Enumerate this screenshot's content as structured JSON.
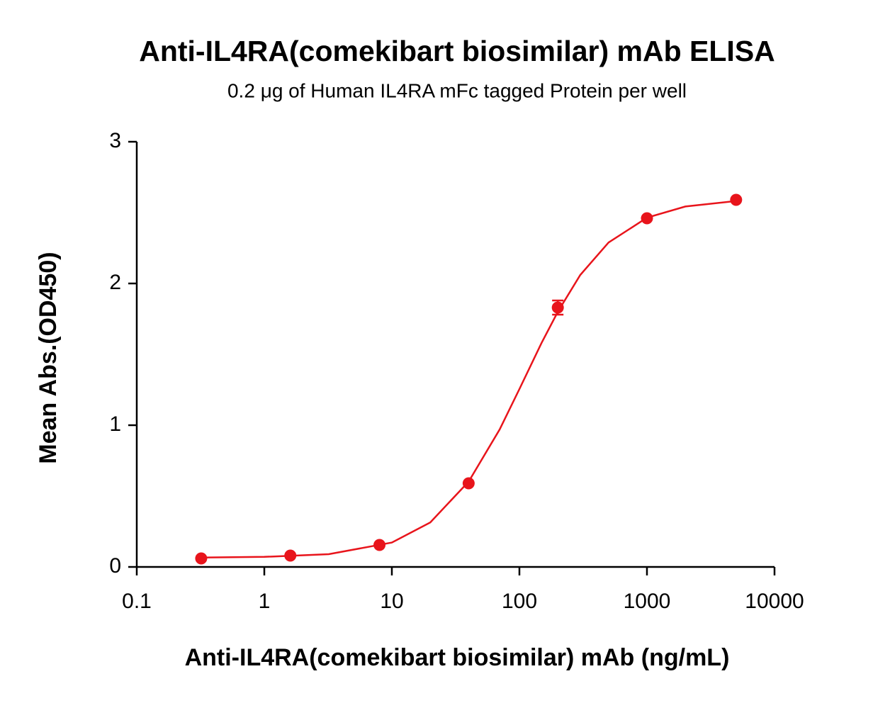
{
  "chart_data": {
    "type": "scatter",
    "title": "Anti-IL4RA(comekibart biosimilar) mAb ELISA",
    "subtitle": "0.2 μg of Human IL4RA mFc tagged Protein per well",
    "x_label": "Anti-IL4RA(comekibart biosimilar) mAb (ng/mL)",
    "y_label": "Mean Abs.(OD450)",
    "x": [
      0.32,
      1.6,
      8,
      40,
      200,
      1000,
      5000
    ],
    "values": [
      0.06,
      0.08,
      0.155,
      0.59,
      1.83,
      2.46,
      2.59
    ],
    "errors": [
      0,
      0,
      0,
      0,
      0.05,
      0,
      0
    ],
    "color": "#e8141b",
    "fit": {
      "x": [
        0.32,
        1,
        3.2,
        10,
        20,
        40,
        70,
        100,
        150,
        200,
        300,
        500,
        1000,
        2000,
        5000
      ],
      "y": [
        0.066,
        0.071,
        0.09,
        0.172,
        0.314,
        0.602,
        0.97,
        1.255,
        1.585,
        1.8,
        2.06,
        2.289,
        2.464,
        2.543,
        2.582
      ]
    },
    "x_log": true,
    "xlim": [
      0.1,
      10000
    ],
    "xticks": [
      0.1,
      1,
      10,
      100,
      1000,
      10000
    ],
    "ylim": [
      0,
      3
    ],
    "yticks": [
      0,
      1,
      2,
      3
    ]
  }
}
